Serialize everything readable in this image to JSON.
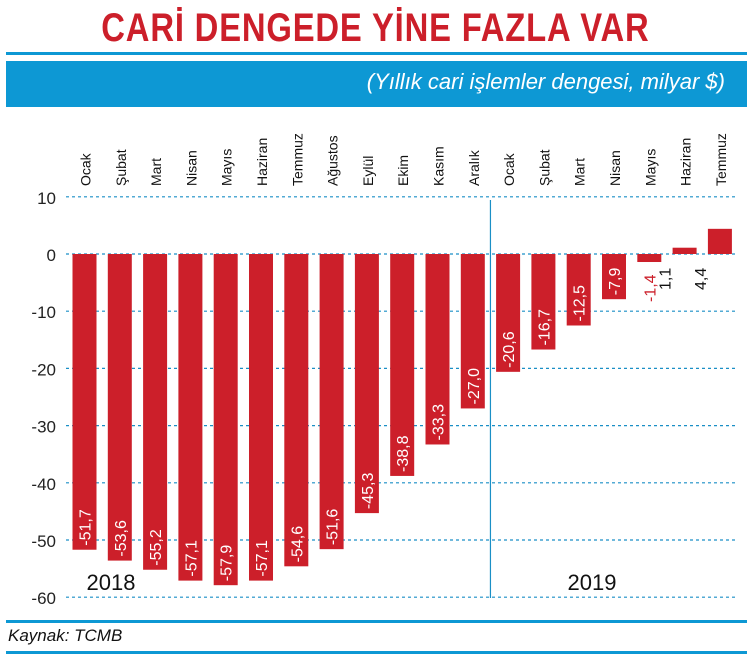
{
  "header": {
    "title": "CARİ DENGEDE YİNE FAZLA VAR",
    "subtitle": "(Yıllık cari işlemler dengesi, milyar $)"
  },
  "footer": {
    "source": "Kaynak: TCMB"
  },
  "colors": {
    "bar": "#cc1f2a",
    "band": "#0d98d4",
    "grid": "#1a8fc6",
    "title": "#cc1f2a"
  },
  "chart_data": {
    "type": "bar",
    "title": "CARİ DENGEDE YİNE FAZLA VAR",
    "subtitle": "(Yıllık cari işlemler dengesi, milyar $)",
    "categories": [
      "Ocak",
      "Şubat",
      "Mart",
      "Nisan",
      "Mayıs",
      "Haziran",
      "Temmuz",
      "Ağustos",
      "Eylül",
      "Ekim",
      "Kasım",
      "Aralık",
      "Ocak",
      "Şubat",
      "Mart",
      "Nisan",
      "Mayıs",
      "Haziran",
      "Temmuz"
    ],
    "values": [
      -51.7,
      -53.6,
      -55.2,
      -57.1,
      -57.9,
      -57.1,
      -54.6,
      -51.6,
      -45.3,
      -38.8,
      -33.3,
      -27.0,
      -20.6,
      -16.7,
      -12.5,
      -7.9,
      -1.4,
      1.1,
      4.4
    ],
    "value_labels": [
      "-51,7",
      "-53,6",
      "-55,2",
      "-57,1",
      "-57,9",
      "-57,1",
      "-54,6",
      "-51,6",
      "-45,3",
      "-38,8",
      "-33,3",
      "-27,0",
      "-20,6",
      "-16,7",
      "-12,5",
      "-7,9",
      "-1,4",
      "1,1",
      "4,4"
    ],
    "year_groups": [
      {
        "label": "2018",
        "start": 0,
        "end": 11
      },
      {
        "label": "2019",
        "start": 12,
        "end": 18
      }
    ],
    "y_ticks": [
      10,
      0,
      -10,
      -20,
      -30,
      -40,
      -50,
      -60
    ],
    "ylim": [
      -60,
      10
    ],
    "grid": true,
    "xlabel": "",
    "ylabel": ""
  }
}
